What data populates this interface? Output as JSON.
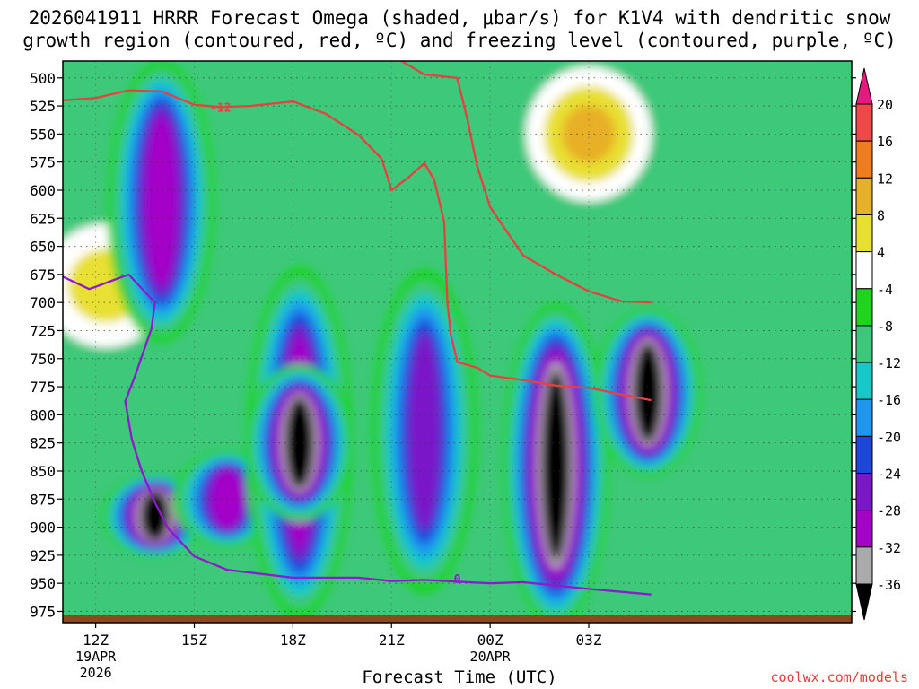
{
  "title_line1": "2026041911 HRRR Forecast Omega (shaded, μbar/s) for K1V4 with dendritic snow",
  "title_line2": "growth region (contoured, red, ºC) and freezing level (contoured, purple, ºC)",
  "xlabel": "Forecast Time (UTC)",
  "credit": "coolwx.com/models",
  "chart_data": {
    "type": "heatmap",
    "title": "2026041911 HRRR Forecast Omega (shaded, μbar/s) for K1V4 with dendritic snow growth region (contoured, red, ºC) and freezing level (contoured, purple, ºC)",
    "xlabel": "Forecast Time (UTC)",
    "ylabel": "",
    "x_range_hours": [
      11,
      35
    ],
    "y_range_mb": [
      985,
      485
    ],
    "y_scale": "inverted pressure (mb)",
    "x_ticks": [
      {
        "hour": 12,
        "label": "12Z",
        "sub1": "19APR",
        "sub2": "2026"
      },
      {
        "hour": 15,
        "label": "15Z",
        "sub1": "",
        "sub2": ""
      },
      {
        "hour": 18,
        "label": "18Z",
        "sub1": "",
        "sub2": ""
      },
      {
        "hour": 21,
        "label": "21Z",
        "sub1": "",
        "sub2": ""
      },
      {
        "hour": 24,
        "label": "00Z",
        "sub1": "20APR",
        "sub2": ""
      },
      {
        "hour": 27,
        "label": "03Z",
        "sub1": "",
        "sub2": ""
      }
    ],
    "y_ticks": [
      500,
      525,
      550,
      575,
      600,
      625,
      650,
      675,
      700,
      725,
      750,
      775,
      800,
      825,
      850,
      875,
      900,
      925,
      950,
      975
    ],
    "grid": true,
    "colorbar": {
      "label_values": [
        "20",
        "16",
        "12",
        "8",
        "4",
        "-4",
        "-8",
        "-12",
        "-16",
        "-20",
        "-24",
        "-28",
        "-32",
        "-36"
      ],
      "bins": [
        {
          "color": "#e8197e",
          "range": "> 20"
        },
        {
          "color": "#f04848",
          "range": "16 to 20"
        },
        {
          "color": "#f07c20",
          "range": "12 to 16"
        },
        {
          "color": "#e8b028",
          "range": "8 to 12"
        },
        {
          "color": "#e8e030",
          "range": "4 to 8"
        },
        {
          "color": "#ffffff",
          "range": "-4 to 4"
        },
        {
          "color": "#1fd31f",
          "range": "-8 to -4"
        },
        {
          "color": "#3cc87a",
          "range": "-12 to -8"
        },
        {
          "color": "#16c8c8",
          "range": "-16 to -12"
        },
        {
          "color": "#1e96f0",
          "range": "-20 to -16"
        },
        {
          "color": "#1e46d8",
          "range": "-24 to -20"
        },
        {
          "color": "#7a18c8",
          "range": "-28 to -24"
        },
        {
          "color": "#a400c8",
          "range": "-32 to -28"
        },
        {
          "color": "#aaaaaa",
          "range": "-36 to -32"
        },
        {
          "color": "#000000",
          "range": "< -36"
        }
      ]
    },
    "omega_features": [
      {
        "hour": 12.3,
        "p_min": 630,
        "p_max": 740,
        "value": 6,
        "note": "weak upward (yellow)"
      },
      {
        "hour": 14.0,
        "p_min": 510,
        "p_max": 710,
        "value": -32,
        "note": "strong ascent column"
      },
      {
        "hour": 13.8,
        "p_min": 860,
        "p_max": 920,
        "value": -40,
        "note": "black core"
      },
      {
        "hour": 16.0,
        "p_min": 840,
        "p_max": 910,
        "value": -30
      },
      {
        "hour": 18.2,
        "p_min": 700,
        "p_max": 950,
        "value": -30
      },
      {
        "hour": 18.2,
        "p_min": 770,
        "p_max": 880,
        "value": -40,
        "note": "black core"
      },
      {
        "hour": 22.0,
        "p_min": 700,
        "p_max": 930,
        "value": -26
      },
      {
        "hour": 26.0,
        "p_min": 730,
        "p_max": 960,
        "value": -40,
        "note": "broad black region"
      },
      {
        "hour": 27.0,
        "p_min": 490,
        "p_max": 610,
        "value": 12,
        "note": "subsidence (orange/yellow)"
      },
      {
        "hour": 28.8,
        "p_min": 720,
        "p_max": 840,
        "value": -40,
        "note": "black core"
      }
    ],
    "series": [
      {
        "name": "-12",
        "color": "#e84040",
        "points": [
          [
            11.0,
            520
          ],
          [
            12.0,
            518
          ],
          [
            13.0,
            511
          ],
          [
            14.0,
            512
          ],
          [
            15.0,
            524
          ],
          [
            15.8,
            526
          ],
          [
            16.7,
            525
          ],
          [
            18.0,
            521
          ],
          [
            19.0,
            532
          ],
          [
            20.0,
            551
          ],
          [
            20.7,
            572
          ],
          [
            21.0,
            600
          ],
          [
            21.5,
            589
          ],
          [
            22.0,
            576
          ],
          [
            22.3,
            591
          ],
          [
            22.6,
            628
          ],
          [
            22.7,
            700
          ],
          [
            22.8,
            728
          ],
          [
            23.0,
            753
          ],
          [
            23.6,
            758
          ],
          [
            24.0,
            765
          ],
          [
            25.0,
            769
          ],
          [
            26.0,
            774
          ],
          [
            27.0,
            776
          ],
          [
            28.0,
            782
          ],
          [
            28.9,
            787
          ]
        ]
      },
      {
        "name": "-12 (upper)",
        "color": "#e84040",
        "points": [
          [
            21.3,
            485
          ],
          [
            22.0,
            497
          ],
          [
            23.0,
            500
          ],
          [
            23.3,
            536
          ],
          [
            23.6,
            578
          ],
          [
            24.0,
            615
          ],
          [
            25.0,
            658
          ],
          [
            26.0,
            675
          ],
          [
            27.0,
            690
          ],
          [
            28.0,
            699
          ],
          [
            28.9,
            700
          ]
        ]
      },
      {
        "name": "0",
        "color": "#9018d0",
        "points": [
          [
            11.0,
            677
          ],
          [
            11.8,
            688
          ],
          [
            12.0,
            686
          ],
          [
            13.0,
            675
          ],
          [
            13.8,
            700
          ],
          [
            13.7,
            723
          ],
          [
            13.2,
            765
          ],
          [
            12.9,
            788
          ],
          [
            13.1,
            822
          ],
          [
            13.4,
            850
          ],
          [
            13.8,
            878
          ],
          [
            14.2,
            901
          ],
          [
            15.0,
            926
          ],
          [
            16.0,
            938
          ],
          [
            18.0,
            945
          ],
          [
            20.0,
            945
          ],
          [
            21.0,
            948
          ],
          [
            22.0,
            947
          ],
          [
            24.0,
            950
          ],
          [
            25.0,
            949
          ],
          [
            27.0,
            955
          ],
          [
            28.9,
            960
          ]
        ]
      }
    ]
  }
}
